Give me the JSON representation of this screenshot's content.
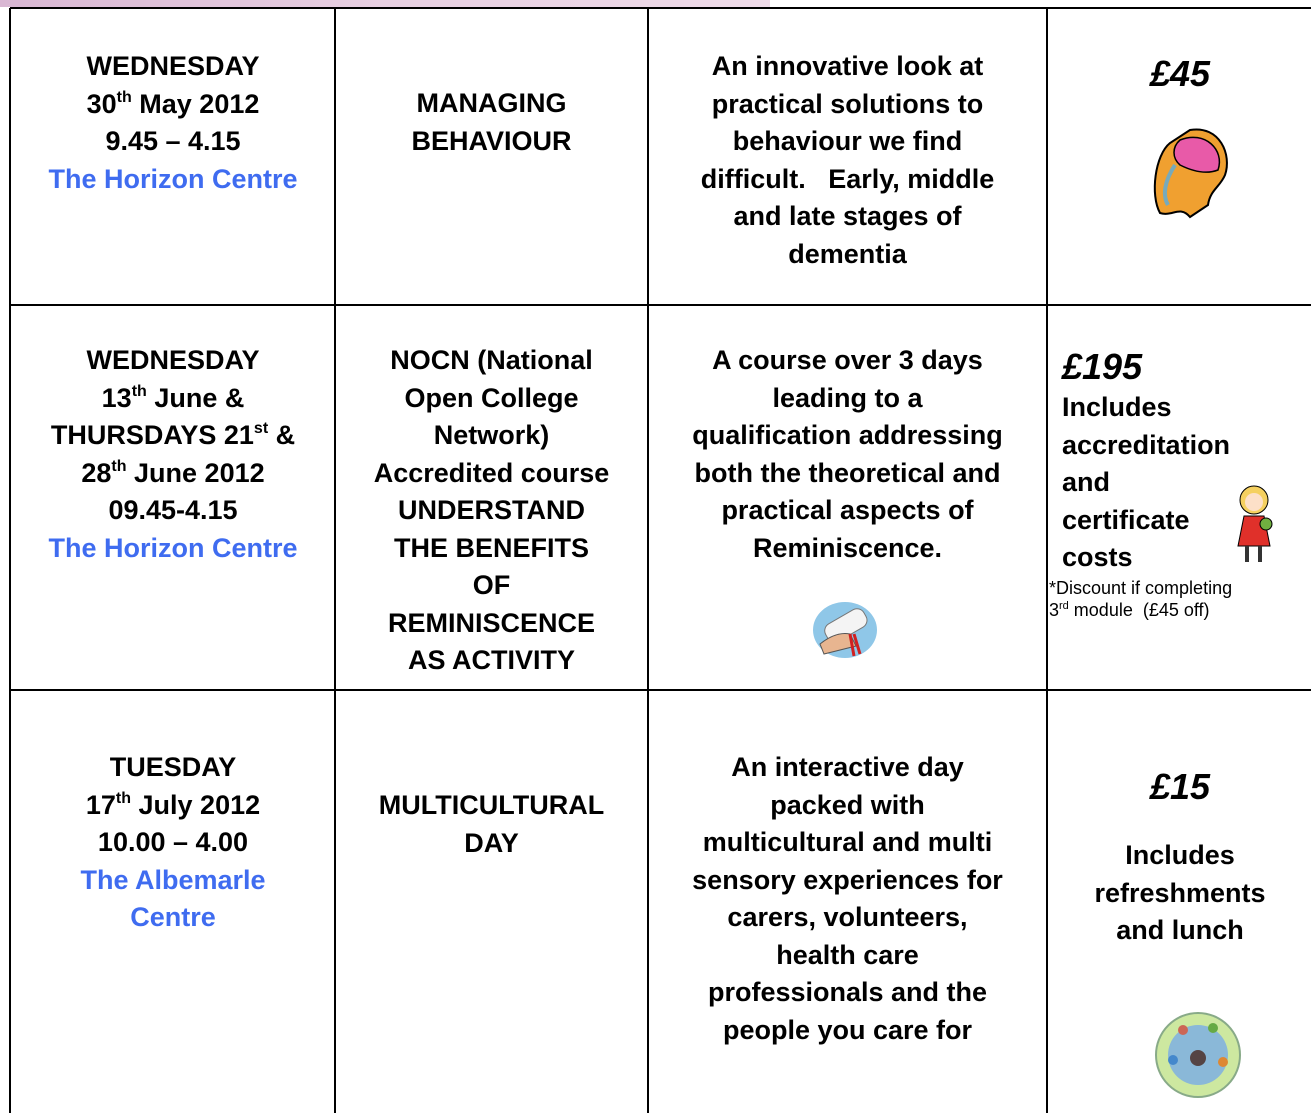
{
  "table": {
    "rows": [
      {
        "date": {
          "lines": [
            "WEDNESDAY",
            [
              "30",
              "th",
              " May 2012"
            ],
            "9.45 – 4.15"
          ],
          "venue": [
            "The Horizon Centre"
          ]
        },
        "title": [
          "MANAGING",
          "BEHAVIOUR"
        ],
        "description": [
          "An innovative look at",
          "practical solutions to",
          "behaviour we find",
          "difficult.   Early, middle",
          "and late stages of",
          "dementia"
        ],
        "price": {
          "amount": "£45"
        }
      },
      {
        "date": {
          "lines": [
            "WEDNESDAY",
            [
              "13",
              "th",
              " June &"
            ],
            [
              "THURSDAYS 21",
              "st",
              " &"
            ],
            [
              "28",
              "th",
              " June 2012"
            ],
            "09.45-4.15"
          ],
          "venue": [
            "The Horizon Centre"
          ]
        },
        "title": [
          "NOCN (National",
          "Open College",
          "Network)",
          "Accredited course",
          "UNDERSTAND",
          "THE BENEFITS",
          "OF",
          "REMINISCENCE",
          "AS ACTIVITY"
        ],
        "description": [
          "A course over 3 days",
          "leading to a",
          "qualification addressing",
          "both the theoretical and",
          "practical aspects of",
          "Reminiscence."
        ],
        "price": {
          "amount": "£195",
          "includes": [
            "Includes",
            "accreditation",
            "and",
            "certificate",
            "costs"
          ],
          "note": [
            "*Discount if completing",
            [
              "3",
              "rd",
              " module  (£45 off)"
            ]
          ]
        }
      },
      {
        "date": {
          "lines": [
            "TUESDAY",
            [
              "17",
              "th",
              " July 2012"
            ],
            "10.00 – 4.00"
          ],
          "venue": [
            "The Albemarle",
            "Centre"
          ]
        },
        "title": [
          "MULTICULTURAL",
          "DAY"
        ],
        "description": [
          "An interactive day",
          "packed with",
          "multicultural and multi",
          "sensory experiences for",
          "carers, volunteers,",
          "health care",
          "professionals and the",
          "people you care for"
        ],
        "price": {
          "amount": "£15",
          "includes": [
            "Includes",
            "refreshments",
            "and lunch"
          ]
        }
      }
    ]
  }
}
